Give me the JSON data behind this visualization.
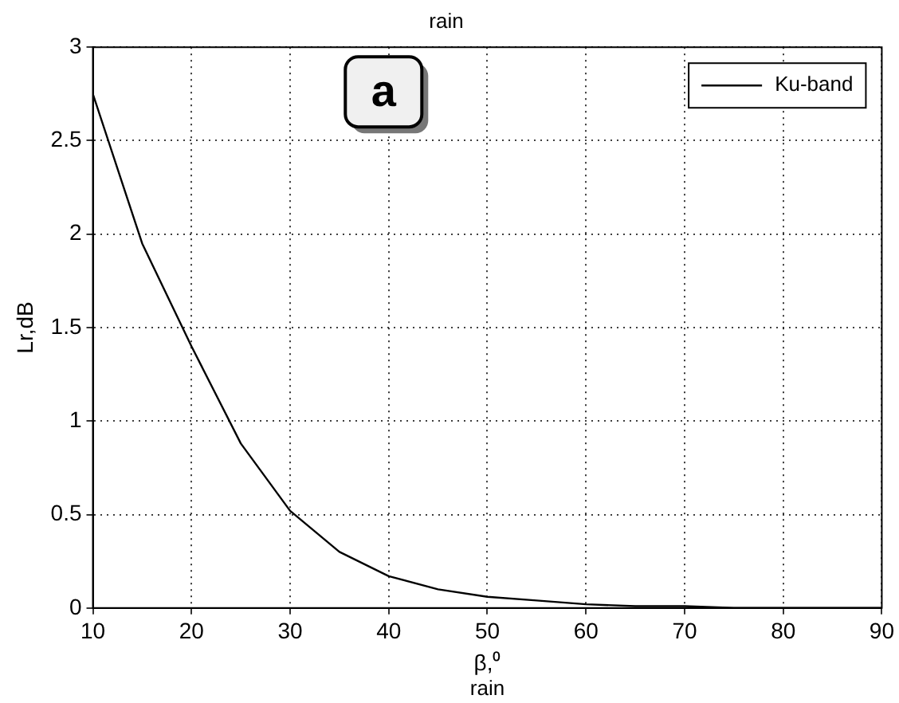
{
  "chart_data": {
    "type": "line",
    "title": "rain",
    "xlabel": "β,⁰",
    "ylabel": "Lr,dB",
    "annotations": [
      "a",
      "rain"
    ],
    "x": [
      10,
      15,
      20,
      25,
      30,
      35,
      40,
      45,
      50,
      55,
      60,
      65,
      70,
      75,
      80,
      85,
      90
    ],
    "series": [
      {
        "name": "Ku-band",
        "color": "#000000",
        "values": [
          2.75,
          1.95,
          1.4,
          0.88,
          0.52,
          0.3,
          0.17,
          0.1,
          0.06,
          0.04,
          0.02,
          0.01,
          0.01,
          0,
          0,
          0,
          0
        ]
      }
    ],
    "xlim": [
      10,
      90
    ],
    "xticks": [
      10,
      20,
      30,
      40,
      50,
      60,
      70,
      80,
      90
    ],
    "ylim": [
      0,
      3
    ],
    "yticks": [
      0,
      0.5,
      1,
      1.5,
      2,
      2.5,
      3
    ],
    "grid": true,
    "legend": "top right",
    "marker": "none",
    "line_style": "solid"
  }
}
